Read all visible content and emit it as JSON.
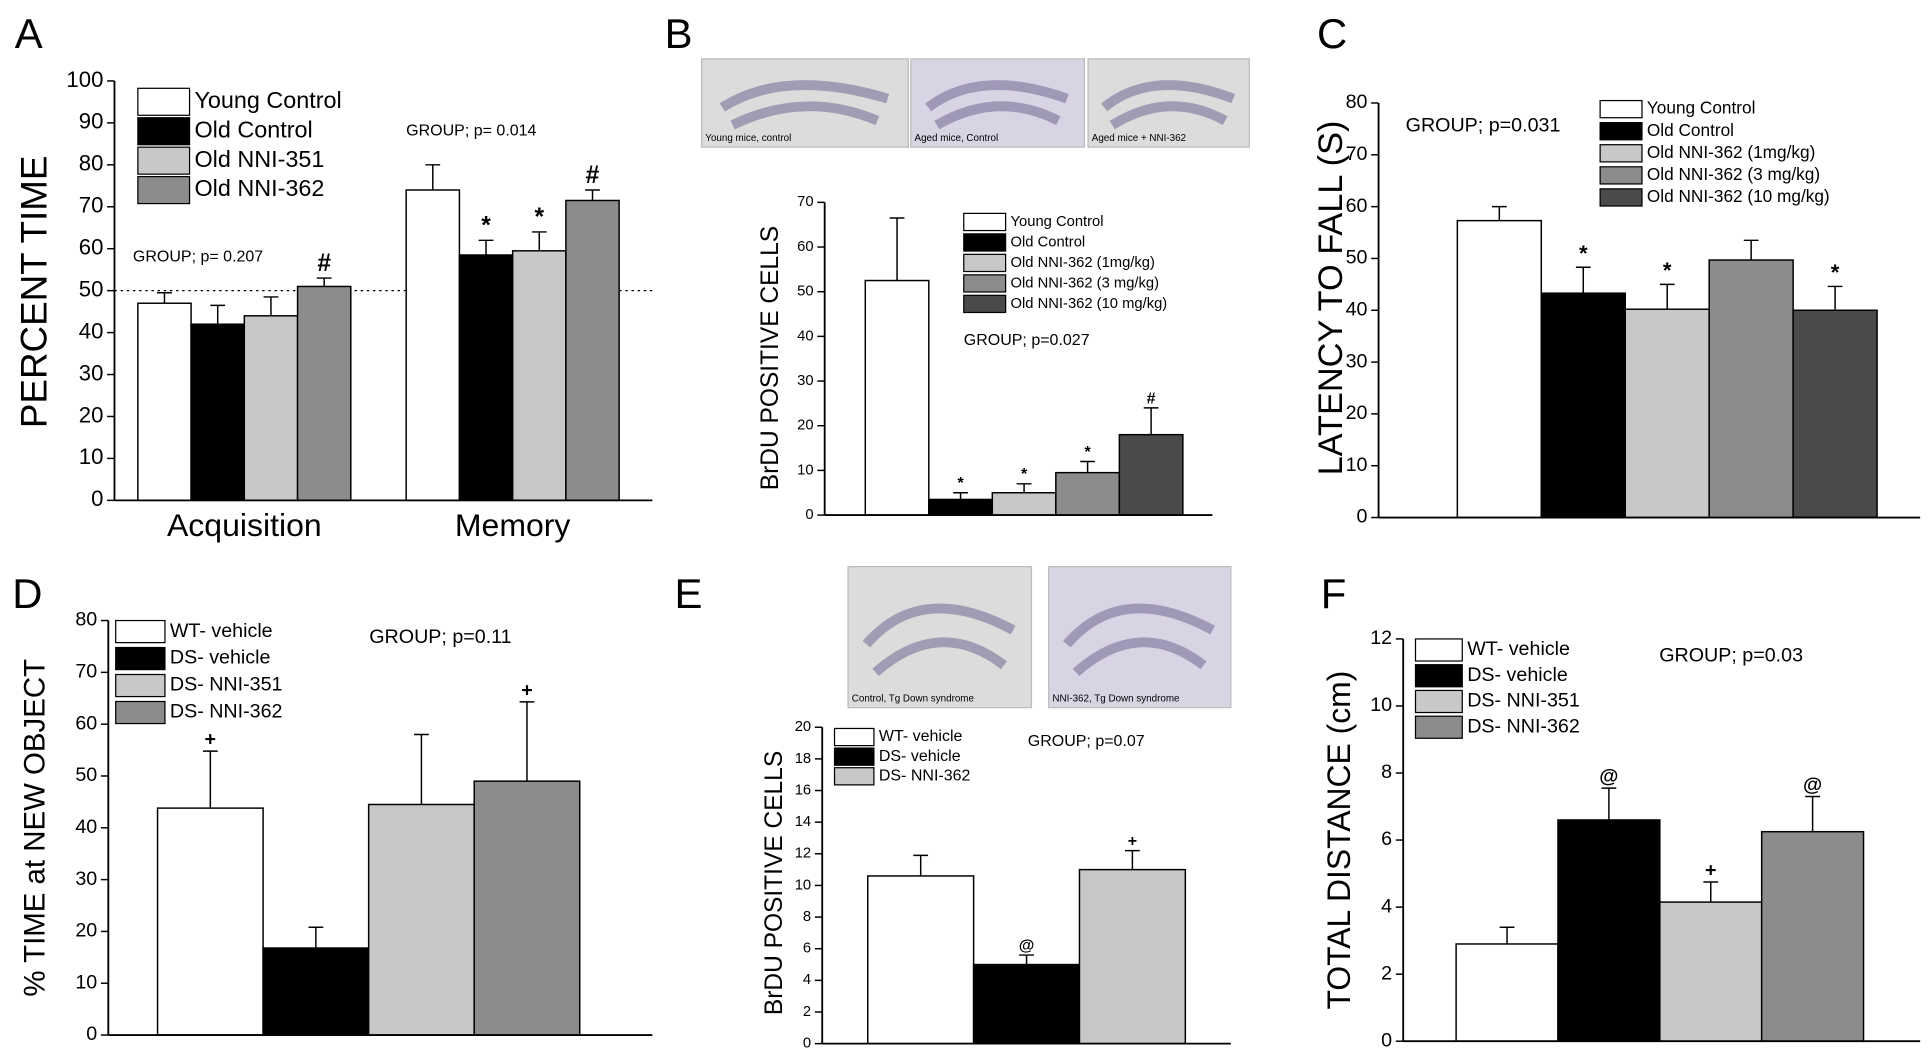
{
  "chart_data": [
    {
      "type": "bar",
      "label": "A",
      "ylabel": "PERCENT TIME",
      "categories": [
        "Acquisition",
        "Memory"
      ],
      "series": [
        {
          "name": "Young Control",
          "color": "#ffffff",
          "values": [
            47,
            74
          ],
          "errors": [
            2.5,
            6
          ],
          "markers": [
            null,
            null
          ]
        },
        {
          "name": "Old Control",
          "color": "#000000",
          "values": [
            42,
            58.5
          ],
          "errors": [
            4.5,
            3.5
          ],
          "markers": [
            null,
            "*"
          ]
        },
        {
          "name": "Old NNI-351",
          "color": "#c8c8c8",
          "values": [
            44,
            59.5
          ],
          "errors": [
            4.5,
            4.5
          ],
          "markers": [
            null,
            "*"
          ]
        },
        {
          "name": "Old NNI-362",
          "color": "#8c8c8c",
          "values": [
            51,
            71.5
          ],
          "errors": [
            2,
            2.5
          ],
          "markers": [
            "#",
            "#"
          ]
        }
      ],
      "ylim": [
        0,
        100
      ],
      "yticks": [
        0,
        10,
        20,
        30,
        40,
        50,
        60,
        70,
        80,
        90,
        100
      ],
      "reference_line": 50,
      "annotations": [
        "GROUP; p= 0.207",
        "GROUP; p= 0.014"
      ]
    },
    {
      "type": "bar",
      "label": "B",
      "ylabel": "BrDU POSITIVE CELLS",
      "images": [
        "Young mice, control",
        "Aged mice, Control",
        "Aged mice + NNI-362"
      ],
      "categories": [
        null
      ],
      "series": [
        {
          "name": "Young Control",
          "color": "#ffffff",
          "values": [
            52.5
          ],
          "errors": [
            14
          ],
          "markers": [
            null
          ]
        },
        {
          "name": "Old Control",
          "color": "#000000",
          "values": [
            3.5
          ],
          "errors": [
            1.5
          ],
          "markers": [
            "*"
          ]
        },
        {
          "name": "Old NNI-362 (1mg/kg)",
          "color": "#c8c8c8",
          "values": [
            5
          ],
          "errors": [
            2
          ],
          "markers": [
            "*"
          ]
        },
        {
          "name": "Old NNI-362 (3 mg/kg)",
          "color": "#8c8c8c",
          "values": [
            9.5
          ],
          "errors": [
            2.5
          ],
          "markers": [
            "*"
          ]
        },
        {
          "name": "Old NNI-362 (10 mg/kg)",
          "color": "#4a4a4a",
          "values": [
            18
          ],
          "errors": [
            6
          ],
          "markers": [
            "#"
          ]
        }
      ],
      "ylim": [
        0,
        70
      ],
      "yticks": [
        0,
        10,
        20,
        30,
        40,
        50,
        60,
        70
      ],
      "annotations": [
        "GROUP; p=0.027"
      ]
    },
    {
      "type": "bar",
      "label": "C",
      "ylabel": "LATENCY TO FALL (S)",
      "categories": [
        null
      ],
      "series": [
        {
          "name": "Young Control",
          "color": "#ffffff",
          "values": [
            57.3
          ],
          "errors": [
            2.7
          ],
          "markers": [
            null
          ]
        },
        {
          "name": "Old Control",
          "color": "#000000",
          "values": [
            43.3
          ],
          "errors": [
            5
          ],
          "markers": [
            "*"
          ]
        },
        {
          "name": "Old NNI-362 (1mg/kg)",
          "color": "#c8c8c8",
          "values": [
            40.2
          ],
          "errors": [
            4.8
          ],
          "markers": [
            "*"
          ]
        },
        {
          "name": "Old NNI-362 (3 mg/kg)",
          "color": "#8c8c8c",
          "values": [
            49.7
          ],
          "errors": [
            3.8
          ],
          "markers": [
            null
          ]
        },
        {
          "name": "Old NNI-362 (10 mg/kg)",
          "color": "#4a4a4a",
          "values": [
            40
          ],
          "errors": [
            4.6
          ],
          "markers": [
            "*"
          ]
        }
      ],
      "ylim": [
        0,
        80
      ],
      "yticks": [
        0,
        10,
        20,
        30,
        40,
        50,
        60,
        70,
        80
      ],
      "annotations": [
        "GROUP; p=0.031"
      ]
    },
    {
      "type": "bar",
      "label": "D",
      "ylabel": "% TIME at NEW OBJECT",
      "categories": [
        null
      ],
      "series": [
        {
          "name": "WT- vehicle",
          "color": "#ffffff",
          "values": [
            43.8
          ],
          "errors": [
            11
          ],
          "markers": [
            "+"
          ]
        },
        {
          "name": "DS- vehicle",
          "color": "#000000",
          "values": [
            16.8
          ],
          "errors": [
            4
          ],
          "markers": [
            null
          ]
        },
        {
          "name": "DS- NNI-351",
          "color": "#c8c8c8",
          "values": [
            44.5
          ],
          "errors": [
            13.5
          ],
          "markers": [
            null
          ]
        },
        {
          "name": "DS- NNI-362",
          "color": "#8c8c8c",
          "values": [
            49
          ],
          "errors": [
            15.3
          ],
          "markers": [
            "+"
          ]
        }
      ],
      "ylim": [
        0,
        80
      ],
      "yticks": [
        0,
        10,
        20,
        30,
        40,
        50,
        60,
        70,
        80
      ],
      "annotations": [
        "GROUP; p=0.11"
      ]
    },
    {
      "type": "bar",
      "label": "E",
      "ylabel": "BrDU POSITIVE CELLS",
      "images": [
        "Control, Tg Down syndrome",
        "NNI-362, Tg Down syndrome"
      ],
      "categories": [
        null
      ],
      "series": [
        {
          "name": "WT- vehicle",
          "color": "#ffffff",
          "values": [
            10.6
          ],
          "errors": [
            1.3
          ],
          "markers": [
            null
          ]
        },
        {
          "name": "DS- vehicle",
          "color": "#000000",
          "values": [
            5
          ],
          "errors": [
            0.6
          ],
          "markers": [
            "@"
          ]
        },
        {
          "name": "DS- NNI-362",
          "color": "#c8c8c8",
          "values": [
            11
          ],
          "errors": [
            1.2
          ],
          "markers": [
            "+"
          ]
        }
      ],
      "ylim": [
        0,
        20
      ],
      "yticks": [
        0,
        2,
        4,
        6,
        8,
        10,
        12,
        14,
        16,
        18,
        20
      ],
      "annotations": [
        "GROUP; p=0.07"
      ]
    },
    {
      "type": "bar",
      "label": "F",
      "ylabel": "TOTAL DISTANCE (cm)",
      "categories": [
        null
      ],
      "series": [
        {
          "name": "WT- vehicle",
          "color": "#ffffff",
          "values": [
            2.9
          ],
          "errors": [
            0.5
          ],
          "markers": [
            null
          ]
        },
        {
          "name": "DS- vehicle",
          "color": "#000000",
          "values": [
            6.6
          ],
          "errors": [
            0.95
          ],
          "markers": [
            "@"
          ]
        },
        {
          "name": "DS- NNI-351",
          "color": "#c8c8c8",
          "values": [
            4.15
          ],
          "errors": [
            0.6
          ],
          "markers": [
            "+"
          ]
        },
        {
          "name": "DS- NNI-362",
          "color": "#8c8c8c",
          "values": [
            6.25
          ],
          "errors": [
            1.05
          ],
          "markers": [
            "@"
          ]
        }
      ],
      "ylim": [
        0,
        12
      ],
      "yticks": [
        0,
        2,
        4,
        6,
        8,
        10,
        12
      ],
      "annotations": [
        "GROUP; p=0.03"
      ]
    }
  ]
}
